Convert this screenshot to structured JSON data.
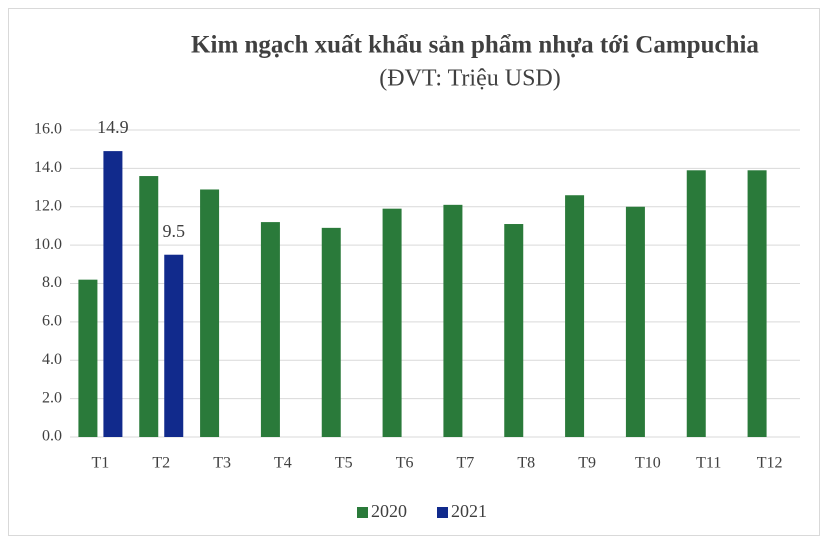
{
  "chart_data": {
    "type": "bar",
    "title": "Kim ngạch xuất khẩu sản phẩm nhựa tới Campuchia",
    "subtitle": "(ĐVT: Triệu USD)",
    "categories": [
      "T1",
      "T2",
      "T3",
      "T4",
      "T5",
      "T6",
      "T7",
      "T8",
      "T9",
      "T10",
      "T11",
      "T12"
    ],
    "series": [
      {
        "name": "2020",
        "color": "#2a7a3a",
        "values": [
          8.2,
          13.6,
          12.9,
          11.2,
          10.9,
          11.9,
          12.1,
          11.1,
          12.6,
          12.0,
          13.9,
          13.9
        ]
      },
      {
        "name": "2021",
        "color": "#112a8c",
        "values": [
          14.9,
          9.5,
          null,
          null,
          null,
          null,
          null,
          null,
          null,
          null,
          null,
          null
        ],
        "data_labels": true
      }
    ],
    "ylim": [
      0,
      16
    ],
    "yticks": [
      {
        "value": 0,
        "label": "0.0"
      },
      {
        "value": 2,
        "label": "2.0"
      },
      {
        "value": 4,
        "label": "4.0"
      },
      {
        "value": 6,
        "label": "6.0"
      },
      {
        "value": 8,
        "label": "8.0"
      },
      {
        "value": 10,
        "label": "10.0"
      },
      {
        "value": 12,
        "label": "12.0"
      },
      {
        "value": 14,
        "label": "14.0"
      },
      {
        "value": 16,
        "label": "16.0"
      }
    ],
    "grid": true,
    "legend": "bottom"
  }
}
